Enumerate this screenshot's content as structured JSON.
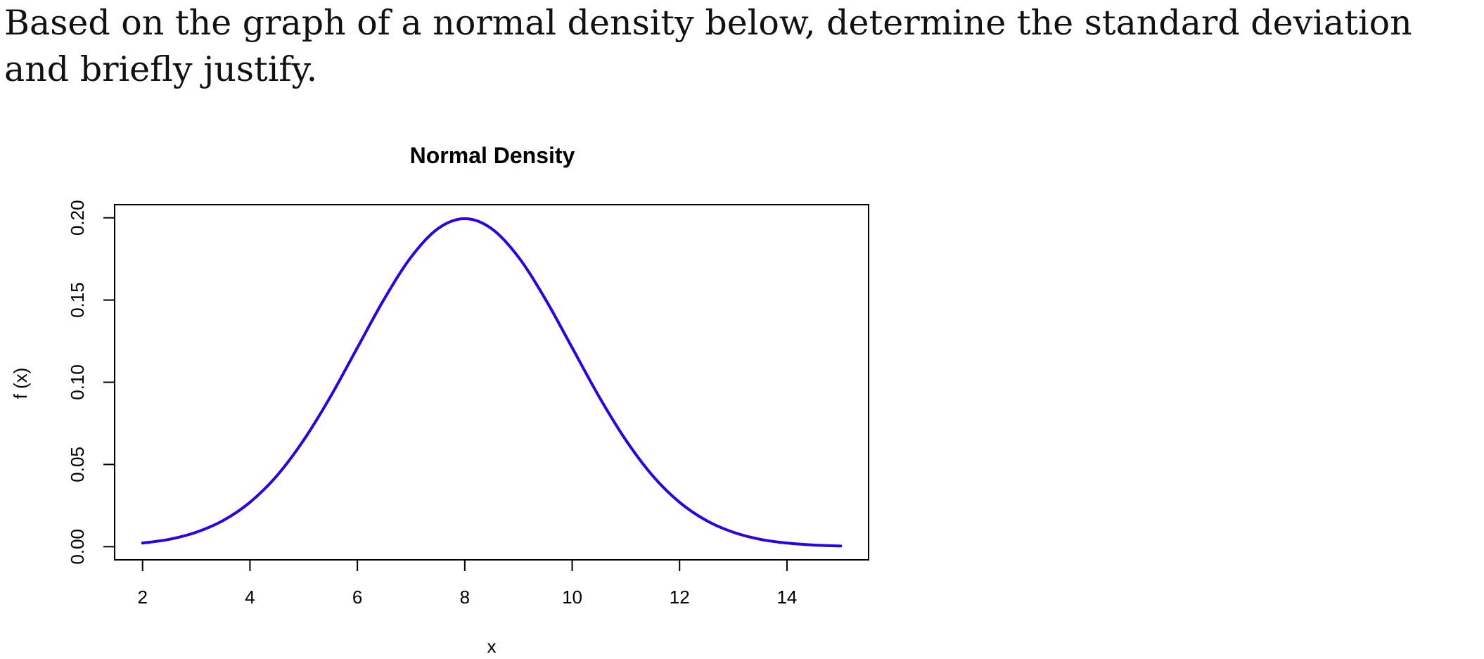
{
  "question": {
    "text": "Based on the graph of a normal density below, determine the standard deviation and briefly justify."
  },
  "colors": {
    "curve": "#2a00e6",
    "axis": "#000000"
  },
  "chart_data": {
    "type": "line",
    "title": "Normal Density",
    "xlabel": "x",
    "ylabel": "f (x)",
    "xlim": [
      2,
      15
    ],
    "ylim": [
      0,
      0.2
    ],
    "grid": false,
    "legend": "none",
    "xticks": [
      "2",
      "4",
      "6",
      "8",
      "10",
      "12",
      "14"
    ],
    "yticks": [
      "0.00",
      "0.05",
      "0.10",
      "0.15",
      "0.20"
    ],
    "series": [
      {
        "x": [
          2,
          2.5,
          3,
          3.5,
          4,
          4.5,
          5,
          5.5,
          6,
          6.5,
          7,
          7.5,
          8,
          8.5,
          9,
          9.5,
          10,
          10.5,
          11,
          11.5,
          12,
          12.5,
          13,
          13.5,
          14,
          14.5,
          15
        ],
        "y": [
          0.0022,
          0.0045,
          0.0088,
          0.0159,
          0.027,
          0.0431,
          0.0648,
          0.0913,
          0.121,
          0.1506,
          0.1761,
          0.1934,
          0.1995,
          0.1934,
          0.1761,
          0.1506,
          0.121,
          0.0913,
          0.0648,
          0.0431,
          0.027,
          0.0159,
          0.0088,
          0.0045,
          0.0022,
          0.001,
          0.0004
        ]
      }
    ]
  }
}
